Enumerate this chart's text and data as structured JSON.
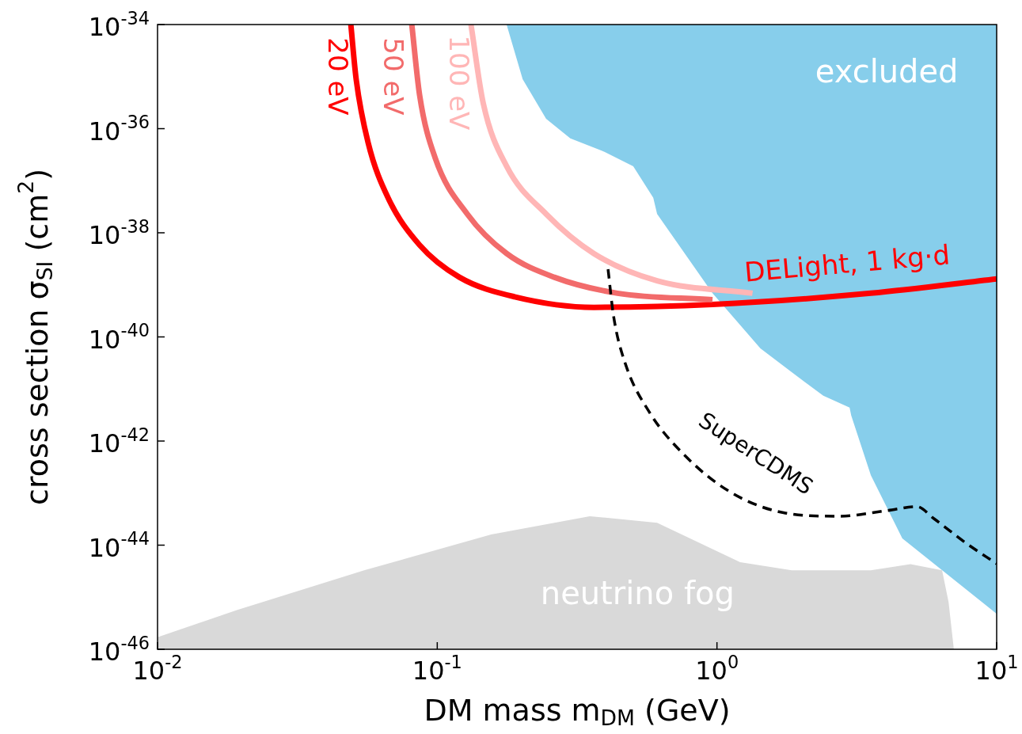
{
  "chart_data": {
    "type": "line",
    "xlabel": "DM mass m$_{DM}$ (GeV)",
    "ylabel": "cross section σ$_{SI}$ (cm$^{2}$)",
    "log": "xy",
    "grid": false,
    "legend": false,
    "marker": "none",
    "xlim": [
      0.01,
      10
    ],
    "ylim": [
      1e-46,
      1e-34
    ],
    "xticks": [
      {
        "value": 0.01,
        "label": "10$^{-2}$"
      },
      {
        "value": 0.1,
        "label": "10$^{-1}$"
      },
      {
        "value": 1,
        "label": "10$^{0}$"
      },
      {
        "value": 10,
        "label": "10$^{1}$"
      }
    ],
    "yticks": [
      {
        "value": 1e-46,
        "label": "10$^{-46}$"
      },
      {
        "value": 1e-44,
        "label": "10$^{-44}$"
      },
      {
        "value": 1e-42,
        "label": "10$^{-42}$"
      },
      {
        "value": 1e-40,
        "label": "10$^{-40}$"
      },
      {
        "value": 1e-38,
        "label": "10$^{-38}$"
      },
      {
        "value": 1e-36,
        "label": "10$^{-36}$"
      },
      {
        "value": 1e-34,
        "label": "10$^{-34}$"
      }
    ],
    "series": [
      {
        "name": "excluded",
        "type": "area",
        "color": "#87ceeb",
        "x": [
          0.177,
          0.202,
          0.245,
          0.299,
          0.387,
          0.502,
          0.592,
          0.611,
          0.964,
          1.43,
          1.85,
          2.4,
          2.98,
          3.02,
          3.55,
          4.6,
          10,
          10
        ],
        "values": [
          1e-34,
          8.9e-36,
          1.55e-36,
          6.5e-37,
          3.8e-37,
          1.9e-37,
          4.7e-38,
          2.3e-38,
          6.9e-40,
          6e-41,
          2.1e-41,
          7.4e-42,
          4.4e-42,
          3.1e-42,
          2.2e-43,
          1.35e-44,
          4.8e-46,
          1e-34
        ]
      },
      {
        "name": "neutrino fog",
        "type": "area",
        "color": "#d9d9d9",
        "x": [
          0.01,
          0.0193,
          0.0548,
          0.156,
          0.351,
          0.611,
          1.21,
          1.85,
          3.55,
          4.92,
          6.38,
          6.73,
          7.03
        ],
        "values": [
          1.7e-46,
          5.7e-46,
          3.3e-45,
          1.6e-44,
          3.6e-44,
          2.7e-44,
          4.7e-45,
          3.3e-45,
          3.3e-45,
          4.3e-45,
          3.3e-45,
          8.1e-46,
          1e-46
        ]
      },
      {
        "name": "20 eV",
        "type": "line",
        "color": "#ff0000",
        "x": [
          0.0491,
          0.0513,
          0.0566,
          0.0667,
          0.0865,
          0.12,
          0.189,
          0.363,
          0.964,
          3.55,
          10
        ],
        "values": [
          1e-34,
          8.9e-36,
          5.4e-37,
          4.7e-38,
          5.8e-39,
          1.4e-39,
          5.9e-40,
          3.7e-40,
          4.2e-40,
          6.9e-40,
          1.3e-39
        ]
      },
      {
        "name": "50 eV",
        "type": "line",
        "color": "#f26b6b",
        "x": [
          0.0811,
          0.0865,
          0.0984,
          0.128,
          0.177,
          0.262,
          0.441,
          0.964
        ],
        "values": [
          1e-34,
          4.4e-36,
          2.7e-37,
          2.3e-38,
          4e-39,
          1.4e-39,
          6.9e-40,
          5.2e-40
        ]
      },
      {
        "name": "100 eV",
        "type": "line",
        "color": "#ffb6b6",
        "x": [
          0.132,
          0.146,
          0.177,
          0.245,
          0.363,
          0.611,
          1.34
        ],
        "values": [
          1e-34,
          3.1e-36,
          1.9e-37,
          2.3e-38,
          4e-39,
          1.2e-39,
          6.9e-40
        ]
      },
      {
        "name": "SuperCDMS",
        "type": "line",
        "line_style": "dashed",
        "color": "#000000",
        "x": [
          0.408,
          0.427,
          0.471,
          0.573,
          0.743,
          1.1,
          1.73,
          2.74,
          4.05,
          5.18,
          5.98,
          7.76,
          10
        ],
        "values": [
          2e-39,
          2.5e-40,
          3e-41,
          3.6e-42,
          6.3e-43,
          1.1e-43,
          4.2e-44,
          3.6e-44,
          4.6e-44,
          5.5e-44,
          3.2e-44,
          1.1e-44,
          4.4e-45
        ]
      }
    ],
    "annotations": [
      "DELight, 1 kg·d"
    ]
  }
}
